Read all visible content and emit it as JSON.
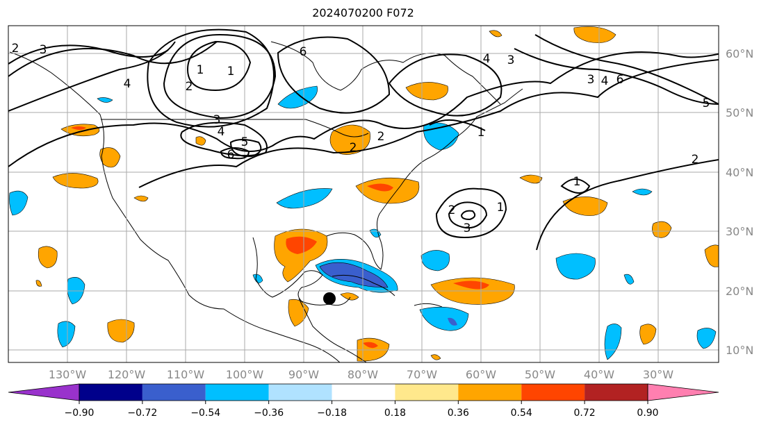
{
  "title": "2024070200 F072",
  "lon_labels": [
    "130°W",
    "120°W",
    "110°W",
    "100°W",
    "90°W",
    "80°W",
    "70°W",
    "60°W",
    "50°W",
    "40°W",
    "30°W"
  ],
  "lat_labels": [
    "60°N",
    "50°N",
    "40°N",
    "30°N",
    "20°N",
    "10°N"
  ],
  "colorbar": {
    "colors": [
      "#9932cc",
      "#00008b",
      "#3a5fcd",
      "#00bfff",
      "#b0e2ff",
      "#ffffff",
      "#ffe88c",
      "#ffa500",
      "#ff4500",
      "#b22222",
      "#ff7fb0"
    ],
    "ticks": [
      "−0.90",
      "−0.72",
      "−0.54",
      "−0.36",
      "−0.18",
      "0.18",
      "0.36",
      "0.54",
      "0.72",
      "0.90"
    ]
  },
  "contour_labels": [
    "2",
    "3",
    "4",
    "6",
    "1",
    "2",
    "3",
    "4",
    "5",
    "6",
    "1",
    "2",
    "4",
    "3",
    "2",
    "3",
    "4",
    "5",
    "6",
    "1",
    "2",
    "3",
    "1",
    "2",
    "1"
  ],
  "colors": {
    "grid": "#aaaaaa",
    "land": "#000000",
    "contour": "#000000"
  },
  "marker": "storm-center-dot"
}
